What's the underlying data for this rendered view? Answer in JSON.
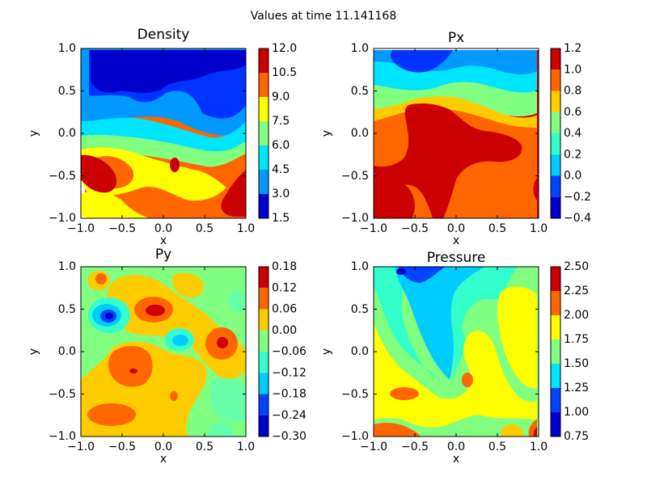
{
  "figure": {
    "suptitle": "Values at time 11.141168"
  },
  "colors": {
    "jet": [
      "#0000cc",
      "#0033ff",
      "#0099ff",
      "#00e5ff",
      "#80ff80",
      "#ffff00",
      "#ffcc00",
      "#ff6600",
      "#cc0000"
    ]
  },
  "chart_data": [
    {
      "type": "heatmap",
      "title": "Density",
      "xlabel": "x",
      "ylabel": "y",
      "xlim": [
        -1.0,
        1.0
      ],
      "ylim": [
        -1.0,
        1.0
      ],
      "xticks": [
        "−1.0",
        "−0.5",
        "0.0",
        "0.5",
        "1.0"
      ],
      "yticks": [
        "−1.0",
        "−0.5",
        "0.0",
        "0.5",
        "1.0"
      ],
      "colorbar": {
        "min": 1.5,
        "max": 12.0,
        "levels": [
          1.5,
          3.0,
          4.5,
          6.0,
          7.5,
          9.0,
          10.5,
          12.0
        ],
        "ticks": [
          "1.5",
          "3.0",
          "4.5",
          "6.0",
          "7.5",
          "9.0",
          "10.5",
          "12.0"
        ]
      },
      "description": "low density (blue) in upper half, high density (orange/red) in lower half"
    },
    {
      "type": "heatmap",
      "title": "Px",
      "xlabel": "x",
      "ylabel": "y",
      "xlim": [
        -1.0,
        1.0
      ],
      "ylim": [
        -1.0,
        1.0
      ],
      "xticks": [
        "−1.0",
        "−0.5",
        "0.0",
        "0.5",
        "1.0"
      ],
      "yticks": [
        "−1.0",
        "−0.5",
        "0.0",
        "0.5",
        "1.0"
      ],
      "colorbar": {
        "min": -0.4,
        "max": 1.2,
        "levels": [
          -0.4,
          -0.2,
          0.0,
          0.2,
          0.4,
          0.6,
          0.8,
          1.0,
          1.2
        ],
        "ticks": [
          "−0.4",
          "−0.2",
          "0.0",
          "0.2",
          "0.4",
          "0.6",
          "0.8",
          "1.0",
          "1.2"
        ]
      }
    },
    {
      "type": "heatmap",
      "title": "Py",
      "xlabel": "x",
      "ylabel": "y",
      "xlim": [
        -1.0,
        1.0
      ],
      "ylim": [
        -1.0,
        1.0
      ],
      "xticks": [
        "−1.0",
        "−0.5",
        "0.0",
        "0.5",
        "1.0"
      ],
      "yticks": [
        "−1.0",
        "−0.5",
        "0.0",
        "0.5",
        "1.0"
      ],
      "colorbar": {
        "min": -0.3,
        "max": 0.18,
        "levels": [
          -0.3,
          -0.24,
          -0.18,
          -0.12,
          -0.06,
          0.0,
          0.06,
          0.12,
          0.18
        ],
        "ticks": [
          "−0.30",
          "−0.24",
          "−0.18",
          "−0.12",
          "−0.06",
          "0.00",
          "0.06",
          "0.12",
          "0.18"
        ]
      }
    },
    {
      "type": "heatmap",
      "title": "Pressure",
      "xlabel": "x",
      "ylabel": "y",
      "xlim": [
        -1.0,
        1.0
      ],
      "ylim": [
        -1.0,
        1.0
      ],
      "xticks": [
        "−1.0",
        "−0.5",
        "0.0",
        "0.5",
        "1.0"
      ],
      "yticks": [
        "−1.0",
        "−0.5",
        "0.0",
        "0.5",
        "1.0"
      ],
      "colorbar": {
        "min": 0.75,
        "max": 2.5,
        "levels": [
          0.75,
          1.0,
          1.25,
          1.5,
          1.75,
          2.0,
          2.25,
          2.5
        ],
        "ticks": [
          "0.75",
          "1.00",
          "1.25",
          "1.50",
          "1.75",
          "2.00",
          "2.25",
          "2.50"
        ]
      }
    }
  ]
}
